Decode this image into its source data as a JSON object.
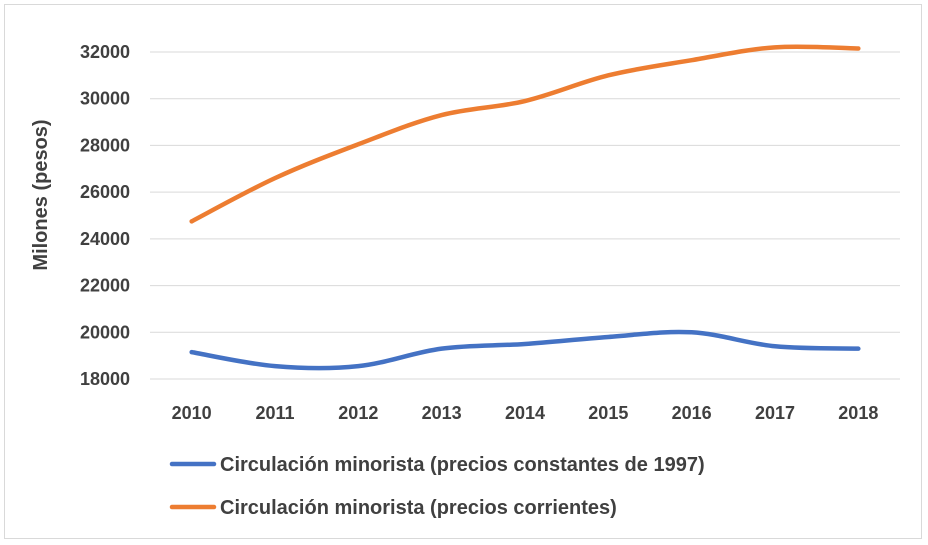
{
  "chart_data": {
    "type": "line",
    "title": "",
    "xlabel": "",
    "ylabel": "Milones (pesos)",
    "categories": [
      "2010",
      "2011",
      "2012",
      "2013",
      "2014",
      "2015",
      "2016",
      "2017",
      "2018"
    ],
    "ylim": [
      18000,
      32000
    ],
    "yticks": [
      "18000",
      "20000",
      "22000",
      "24000",
      "26000",
      "28000",
      "30000",
      "32000"
    ],
    "grid": true,
    "legend_position": "bottom",
    "smooth": true,
    "series": [
      {
        "name": "Circulación minorista (precios constantes de 1997)",
        "color": "#4472c4",
        "values": [
          19150,
          18550,
          18550,
          19300,
          19500,
          19800,
          20000,
          19400,
          19300
        ]
      },
      {
        "name": "Circulación minorista (precios corrientes)",
        "color": "#ed7d31",
        "values": [
          24750,
          26600,
          28050,
          29300,
          29900,
          31000,
          31650,
          32200,
          32150
        ]
      }
    ]
  }
}
